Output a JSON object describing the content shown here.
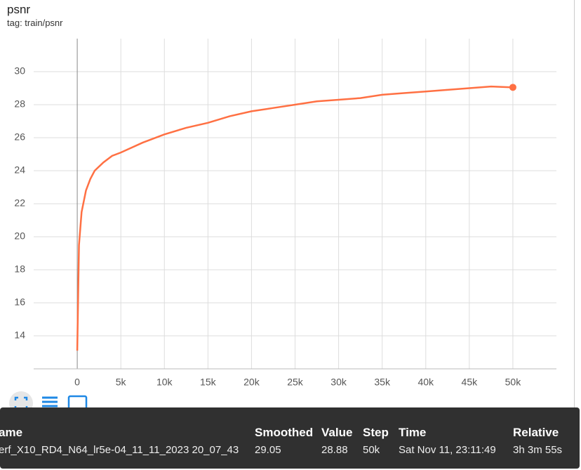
{
  "chart_data": {
    "type": "line",
    "title": "psnr",
    "subtitle": "tag: train/psnr",
    "x": [
      0,
      200,
      500,
      1000,
      1500,
      2000,
      3000,
      4000,
      5000,
      7500,
      10000,
      12500,
      15000,
      17500,
      20000,
      22500,
      25000,
      27500,
      30000,
      32500,
      35000,
      37500,
      40000,
      42500,
      45000,
      47500,
      50000
    ],
    "series": [
      {
        "name": "smoothed",
        "color": "#ff7043",
        "values": [
          13.1,
          19.5,
          21.5,
          22.8,
          23.5,
          24.0,
          24.5,
          24.9,
          25.1,
          25.7,
          26.2,
          26.6,
          26.9,
          27.3,
          27.6,
          27.8,
          28.0,
          28.2,
          28.3,
          28.4,
          28.6,
          28.7,
          28.8,
          28.9,
          29.0,
          29.1,
          29.05
        ]
      }
    ],
    "xlim": [
      -5000,
      55000
    ],
    "xticks": [
      {
        "value": 0,
        "label": "0"
      },
      {
        "value": 5000,
        "label": "5k"
      },
      {
        "value": 10000,
        "label": "10k"
      },
      {
        "value": 15000,
        "label": "15k"
      },
      {
        "value": 20000,
        "label": "20k"
      },
      {
        "value": 25000,
        "label": "25k"
      },
      {
        "value": 30000,
        "label": "30k"
      },
      {
        "value": 35000,
        "label": "35k"
      },
      {
        "value": 40000,
        "label": "40k"
      },
      {
        "value": 45000,
        "label": "45k"
      },
      {
        "value": 50000,
        "label": "50k"
      }
    ],
    "ylim": [
      12,
      32
    ],
    "yticks": [
      14,
      16,
      18,
      20,
      22,
      24,
      26,
      28,
      30
    ],
    "grid": true
  },
  "tooltip": {
    "headers": [
      "ame",
      "Smoothed",
      "Value",
      "Step",
      "Time",
      "Relative"
    ],
    "row": [
      "erf_X10_RD4_N64_lr5e-04_11_11_2023 20_07_43",
      "29.05",
      "28.88",
      "50k",
      "Sat Nov 11, 23:11:49",
      "3h 3m 55s"
    ]
  }
}
